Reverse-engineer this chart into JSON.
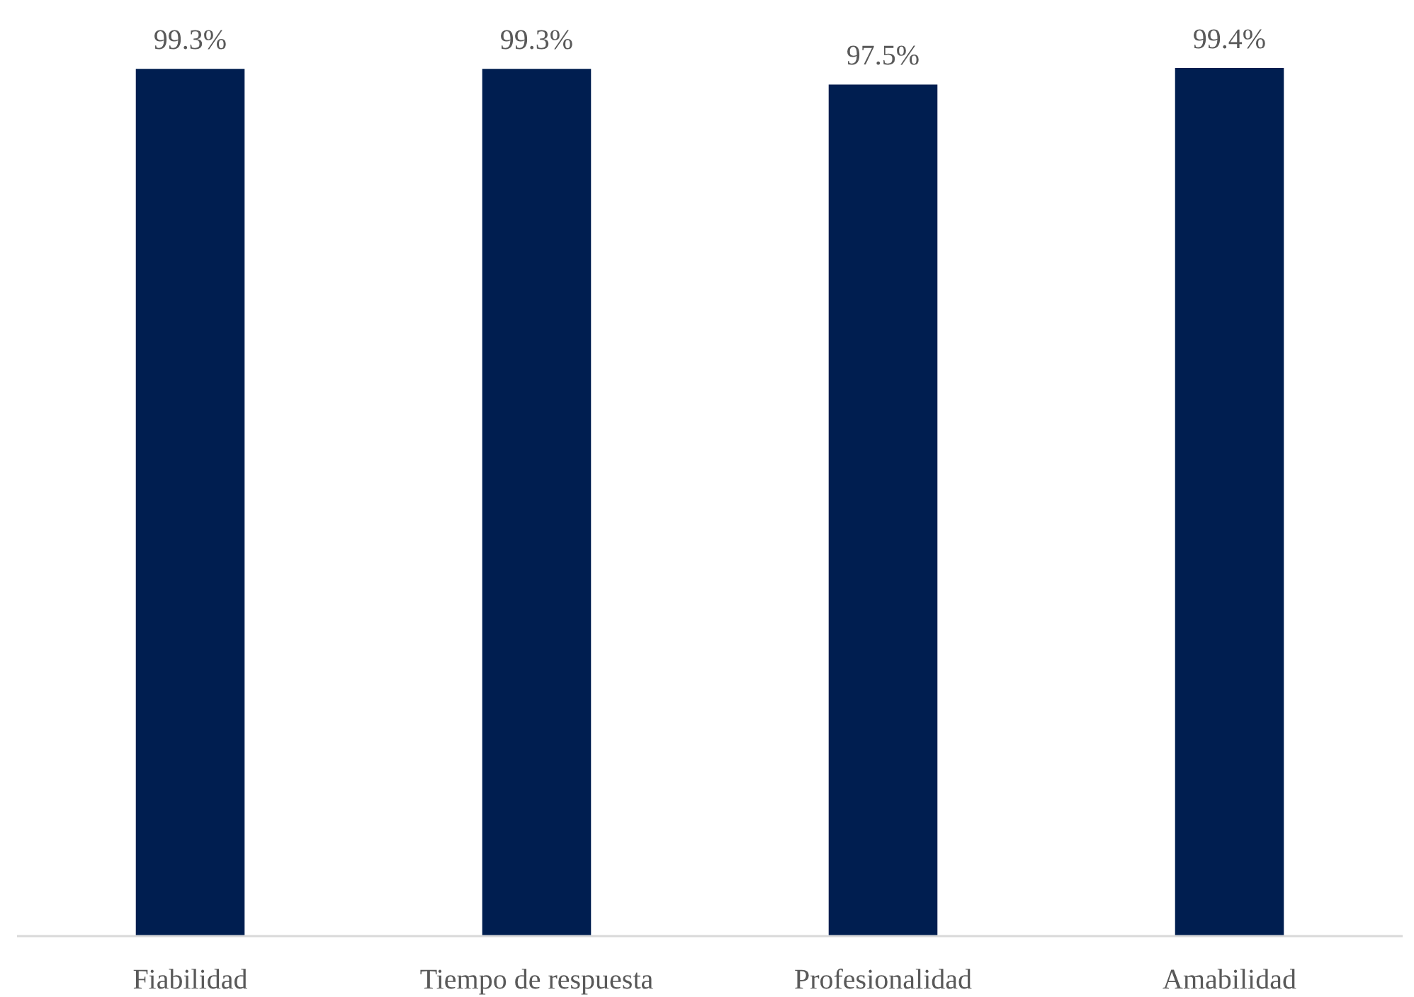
{
  "chart_data": {
    "type": "bar",
    "categories": [
      "Fiabilidad",
      "Tiempo de respuesta",
      "Profesionalidad",
      "Amabilidad"
    ],
    "values": [
      99.3,
      99.3,
      97.5,
      99.4
    ],
    "value_labels": [
      "99.3%",
      "99.3%",
      "97.5%",
      "99.4%"
    ],
    "color": "#001e50"
  }
}
